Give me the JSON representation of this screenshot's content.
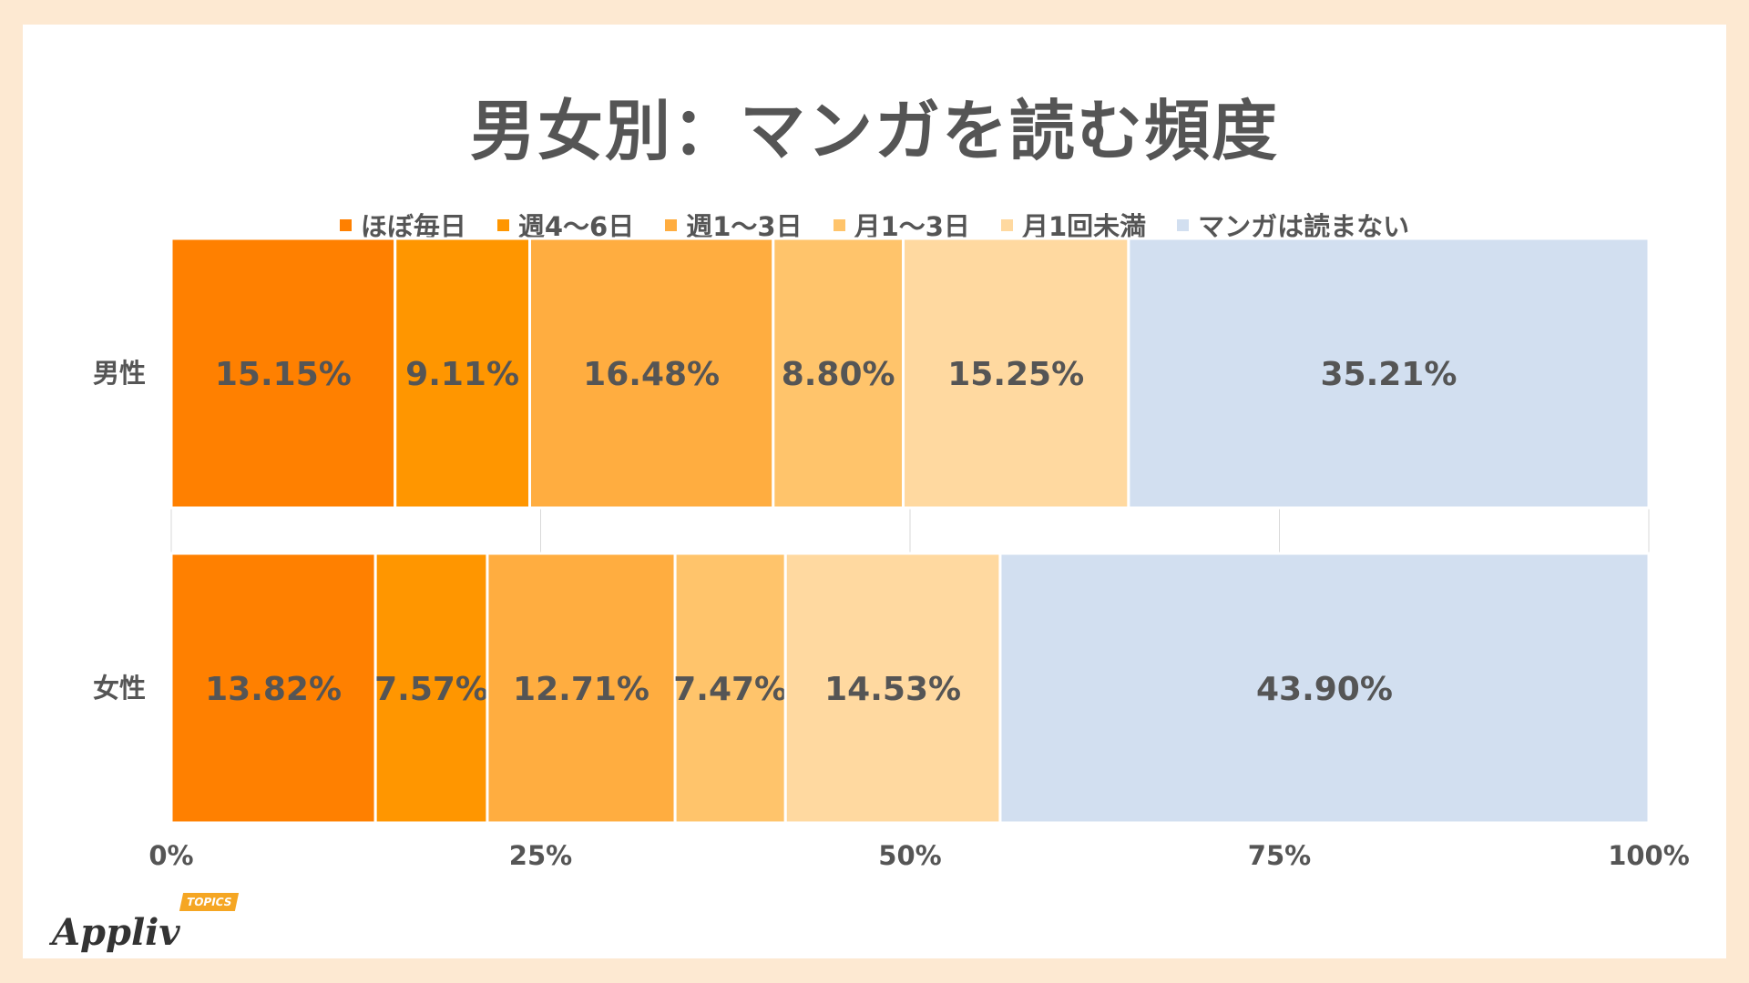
{
  "chart_data": {
    "type": "bar",
    "orientation": "horizontal",
    "stacked": "100%",
    "title": "男女別：マンガを読む頻度",
    "categories": [
      "男性",
      "女性"
    ],
    "series": [
      {
        "name": "ほぼ毎日",
        "color": "#ff8000",
        "values": [
          15.15,
          13.82
        ],
        "labels": [
          "15.15%",
          "13.82%"
        ]
      },
      {
        "name": "週4〜6日",
        "color": "#ff9600",
        "values": [
          9.11,
          7.57
        ],
        "labels": [
          "9.11%",
          "7.57%"
        ]
      },
      {
        "name": "週1〜3日",
        "color": "#ffad40",
        "values": [
          16.48,
          12.71
        ],
        "labels": [
          "16.48%",
          "12.71%"
        ]
      },
      {
        "name": "月1〜3日",
        "color": "#ffc46b",
        "values": [
          8.8,
          7.47
        ],
        "labels": [
          "8.80%",
          "7.47%"
        ]
      },
      {
        "name": "月1回未満",
        "color": "#ffd9a0",
        "values": [
          15.25,
          14.53
        ],
        "labels": [
          "15.25%",
          "14.53%"
        ]
      },
      {
        "name": "マンガは読まない",
        "color": "#d2dff0",
        "values": [
          35.21,
          43.9
        ],
        "labels": [
          "35.21%",
          "43.90%"
        ]
      }
    ],
    "x_ticks": [
      0,
      25,
      50,
      75,
      100
    ],
    "x_tick_labels": [
      "0%",
      "25%",
      "50%",
      "75%",
      "100%"
    ],
    "xlim": [
      0,
      100
    ],
    "legend_position": "top",
    "grid": true
  },
  "logo": {
    "text": "Appliv",
    "badge": "TOPICS"
  }
}
